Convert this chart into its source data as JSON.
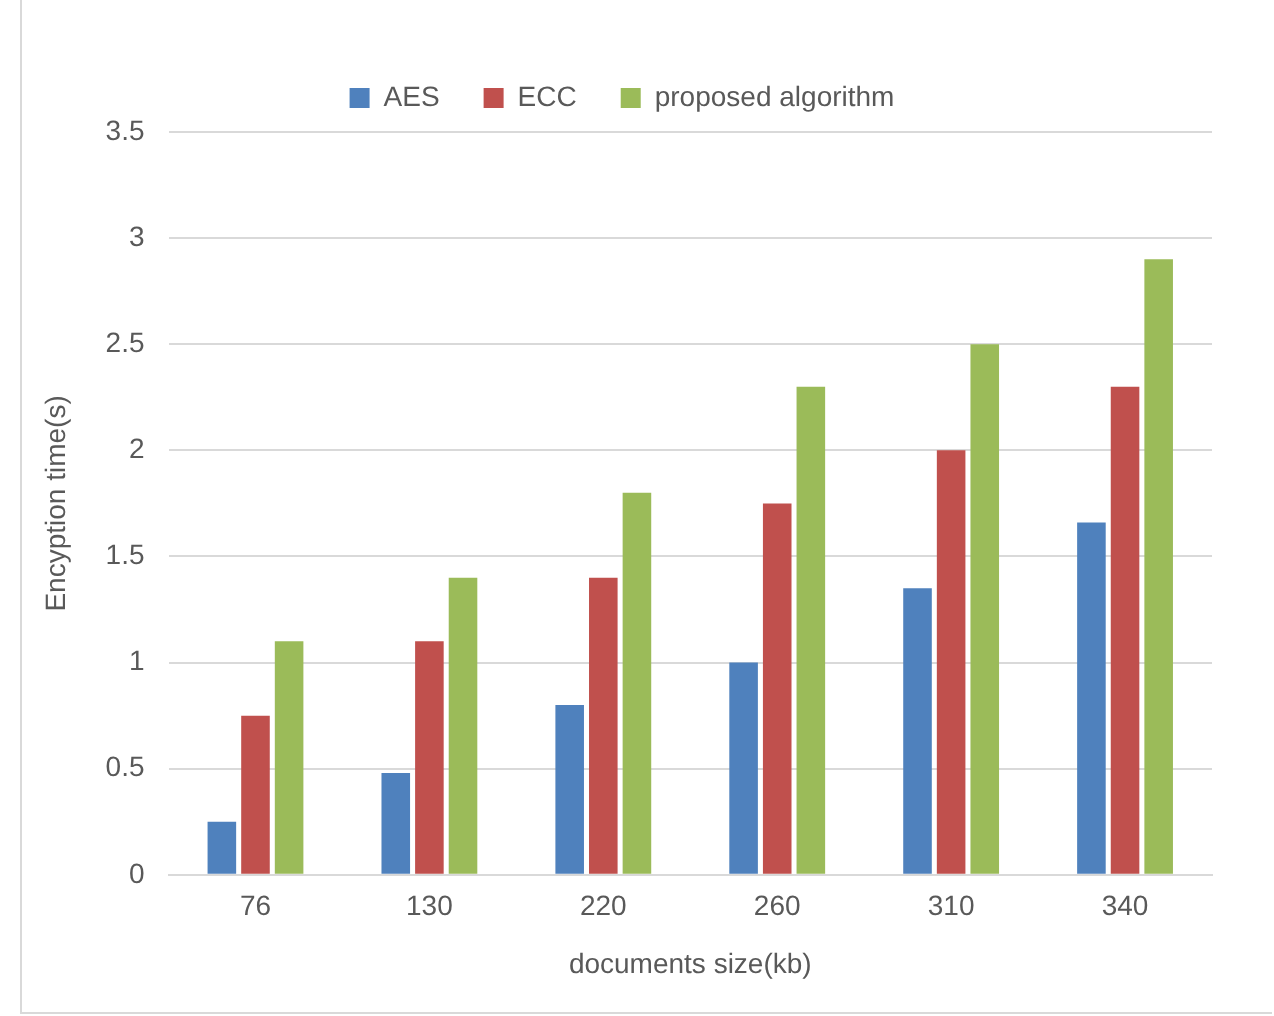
{
  "chart_data": {
    "type": "bar",
    "xlabel": "documents size(kb)",
    "ylabel": "Encyption time(s)",
    "categories": [
      "76",
      "130",
      "220",
      "260",
      "310",
      "340"
    ],
    "series": [
      {
        "name": "AES",
        "color": "#4f81bd",
        "values": [
          0.25,
          0.48,
          0.8,
          1.0,
          1.35,
          1.66
        ]
      },
      {
        "name": "ECC",
        "color": "#c0504d",
        "values": [
          0.75,
          1.1,
          1.4,
          1.75,
          2.0,
          2.3
        ]
      },
      {
        "name": "proposed algorithm",
        "color": "#9bbb59",
        "values": [
          1.1,
          1.4,
          1.8,
          2.3,
          2.5,
          2.9
        ]
      }
    ],
    "ylim": [
      0,
      3.5
    ],
    "yticks": [
      0,
      0.5,
      1,
      1.5,
      2,
      2.5,
      3,
      3.5
    ],
    "grid": "y",
    "legend": "top"
  }
}
